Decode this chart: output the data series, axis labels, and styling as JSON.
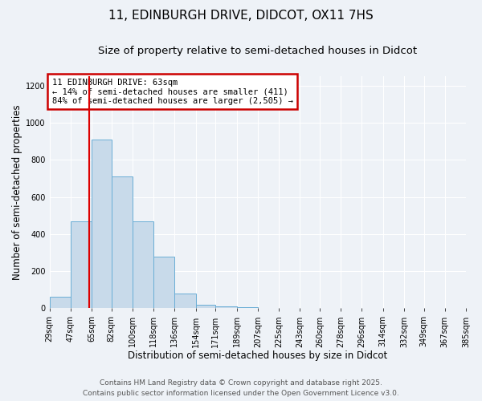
{
  "title_line1": "11, EDINBURGH DRIVE, DIDCOT, OX11 7HS",
  "title_line2": "Size of property relative to semi-detached houses in Didcot",
  "xlabel": "Distribution of semi-detached houses by size in Didcot",
  "ylabel": "Number of semi-detached properties",
  "bin_edges": [
    29,
    47,
    65,
    82,
    100,
    118,
    136,
    154,
    171,
    189,
    207,
    225,
    243,
    260,
    278,
    296,
    314,
    332,
    349,
    367,
    385
  ],
  "bar_heights": [
    60,
    470,
    910,
    710,
    470,
    280,
    80,
    20,
    10,
    5,
    0,
    0,
    0,
    0,
    0,
    0,
    0,
    0,
    0,
    0
  ],
  "bar_color": "#c8daea",
  "bar_edge_color": "#6aaed6",
  "property_size": 63,
  "red_line_color": "#dd0000",
  "annotation_text": "11 EDINBURGH DRIVE: 63sqm\n← 14% of semi-detached houses are smaller (411)\n84% of semi-detached houses are larger (2,505) →",
  "annotation_box_color": "#ffffff",
  "annotation_box_edge": "#cc0000",
  "ylim": [
    0,
    1250
  ],
  "yticks": [
    0,
    200,
    400,
    600,
    800,
    1000,
    1200
  ],
  "tick_labels": [
    "29sqm",
    "47sqm",
    "65sqm",
    "82sqm",
    "100sqm",
    "118sqm",
    "136sqm",
    "154sqm",
    "171sqm",
    "189sqm",
    "207sqm",
    "225sqm",
    "243sqm",
    "260sqm",
    "278sqm",
    "296sqm",
    "314sqm",
    "332sqm",
    "349sqm",
    "367sqm",
    "385sqm"
  ],
  "footer_line1": "Contains HM Land Registry data © Crown copyright and database right 2025.",
  "footer_line2": "Contains public sector information licensed under the Open Government Licence v3.0.",
  "background_color": "#eef2f7",
  "grid_color": "#ffffff",
  "title_fontsize": 11,
  "subtitle_fontsize": 9.5,
  "axis_label_fontsize": 8.5,
  "tick_fontsize": 7,
  "footer_fontsize": 6.5
}
